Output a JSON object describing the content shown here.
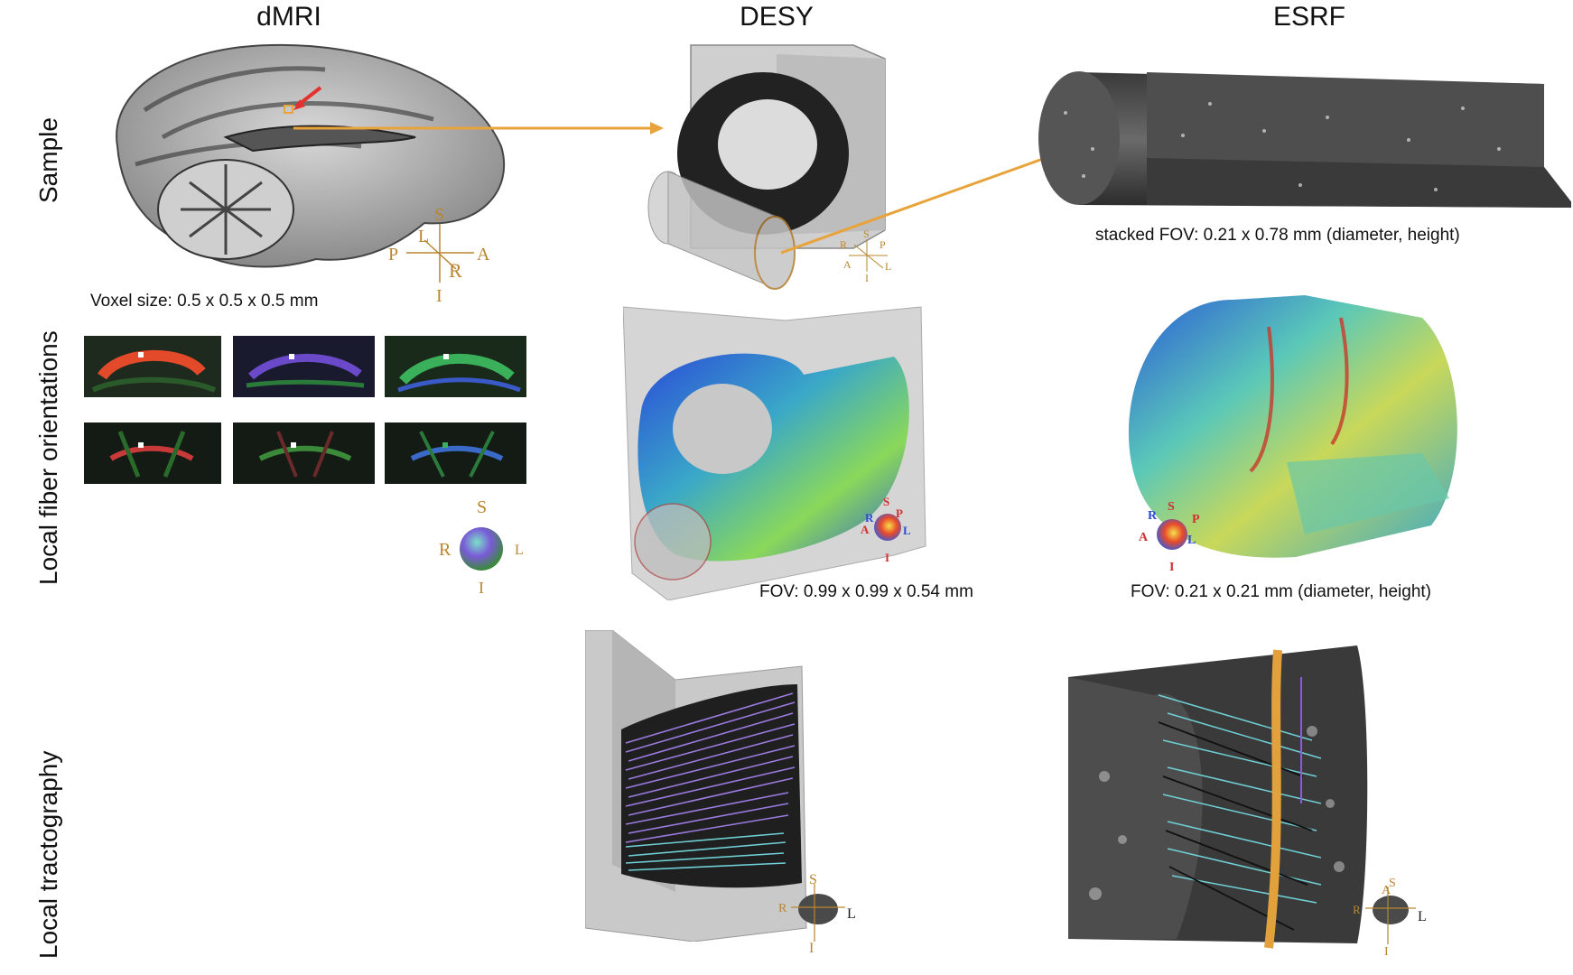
{
  "columns": {
    "dmri": "dMRI",
    "desy": "DESY",
    "esrf": "ESRF"
  },
  "rows": {
    "sample": "Sample",
    "orientations": "Local fiber orientations",
    "tractography": "Local tractography"
  },
  "captions": {
    "voxel": "Voxel size: 0.5 x 0.5 x 0.5 mm",
    "esrf_stacked": "stacked FOV: 0.21 x 0.78 mm (diameter, height)",
    "desy_fov": "FOV: 0.99 x 0.99 x 0.54 mm",
    "esrf_fov": "FOV: 0.21 x 0.21 mm (diameter, height)"
  },
  "axes": {
    "S": "S",
    "I": "I",
    "A": "A",
    "P": "P",
    "L": "L",
    "R": "R"
  },
  "colors": {
    "arrow": "#e8a33a",
    "axis_gold": "#b9862f",
    "streamline_purple": "#9b7be0",
    "streamline_cyan": "#6fd0d6",
    "vessel_orange": "#e2a13a"
  }
}
